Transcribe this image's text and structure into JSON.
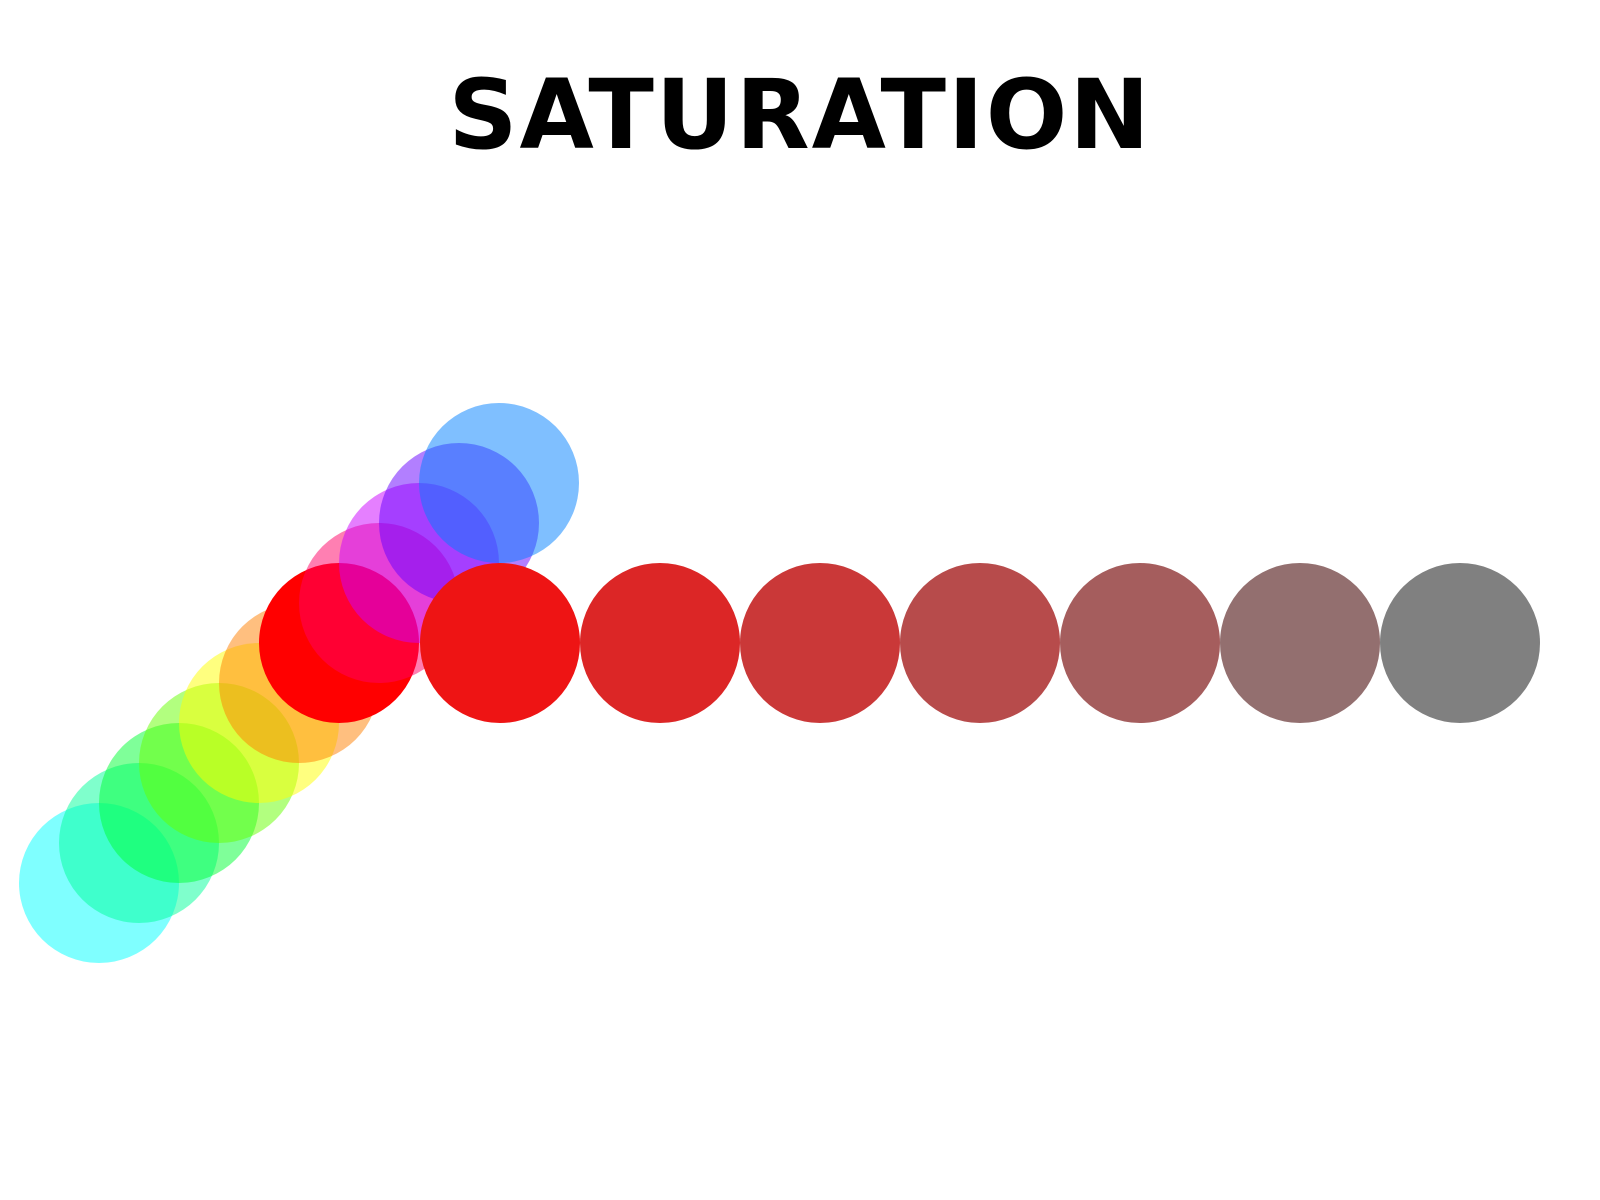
{
  "title": "SATURATION",
  "hue_wheel_colors": [
    "#00ffff",
    "#00ff99",
    "#00ff33",
    "#66ff00",
    "#ffff00",
    "#ff8000",
    "#ff0000",
    "#ff0066",
    "#cc00ff",
    "#6600ff",
    "#0080ff"
  ],
  "hue_wheel_opacities": [
    0.5,
    0.5,
    0.5,
    0.5,
    0.5,
    0.5,
    1.0,
    0.5,
    0.5,
    0.5,
    0.5
  ],
  "desaturation_colors": [
    "#ee1414",
    "#dc2626",
    "#ca3838",
    "#b74b4b",
    "#a55d5d",
    "#936f6f",
    "#808080"
  ]
}
